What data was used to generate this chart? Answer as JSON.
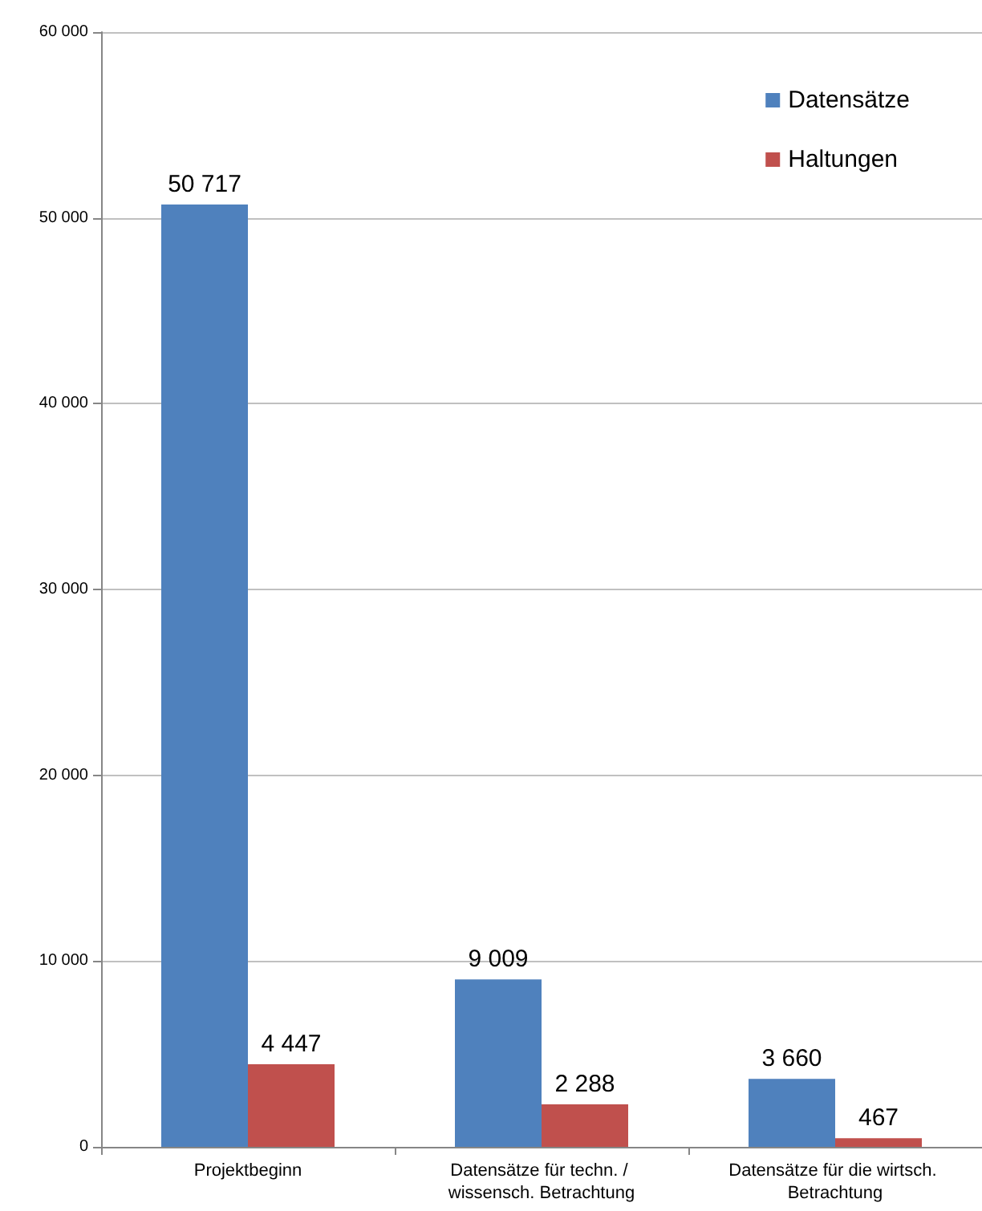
{
  "chart_data": {
    "type": "bar",
    "categories": [
      "Projektbeginn",
      "Datensätze für techn. / wissensch. Betrachtung",
      "Datensätze für die wirtsch. Betrachtung"
    ],
    "series": [
      {
        "name": "Datensätze",
        "color": "#4f81bd",
        "values": [
          50717,
          9009,
          3660
        ],
        "value_labels": [
          "50 717",
          "9 009",
          "3 660"
        ]
      },
      {
        "name": "Haltungen",
        "color": "#c0504d",
        "values": [
          4447,
          2288,
          467
        ],
        "value_labels": [
          "4 447",
          "2 288",
          "467"
        ]
      }
    ],
    "ylim": [
      0,
      60000
    ],
    "yticks": [
      0,
      {
        "value": 10000,
        "label": "10 000"
      },
      {
        "value": 20000,
        "label": "20 000"
      },
      {
        "value": 30000,
        "label": "30 000"
      },
      {
        "value": 40000,
        "label": "40 000"
      },
      {
        "value": 50000,
        "label": "50 000"
      },
      {
        "value": 60000,
        "label": "60 000"
      }
    ],
    "grid": "y",
    "legend": "top right"
  }
}
